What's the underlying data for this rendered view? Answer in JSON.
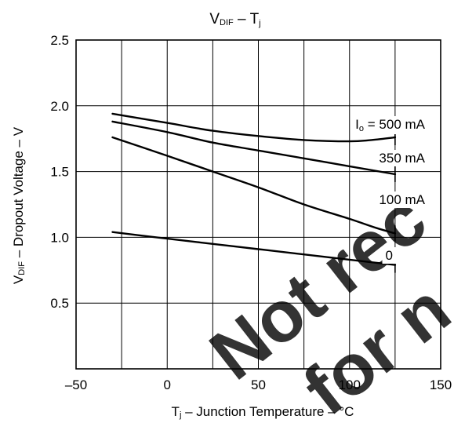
{
  "chart_data": {
    "type": "line",
    "title": {
      "main": "V",
      "sub": "DIF",
      "rest": " – T",
      "sub2": "j"
    },
    "xlabel": {
      "main": "T",
      "sub": "j",
      "rest": " – Junction Temperature – °C"
    },
    "ylabel": {
      "main": "V",
      "sub": "DIF",
      "rest": " – Dropout Voltage – V"
    },
    "xlim": [
      -50,
      150
    ],
    "ylim": [
      0,
      2.5
    ],
    "xticks": [
      -50,
      0,
      50,
      100,
      150
    ],
    "xtick_labels": [
      "–50",
      "0",
      "50",
      "100",
      "150"
    ],
    "yticks": [
      0.5,
      1.0,
      1.5,
      2.0,
      2.5
    ],
    "ytick_labels": [
      "0.5",
      "1.0",
      "1.5",
      "2.0",
      "2.5"
    ],
    "grid": true,
    "series": [
      {
        "name": "Io = 500 mA",
        "label": {
          "main": "I",
          "sub": "o",
          "rest": " = 500 mA"
        },
        "points": [
          [
            -30,
            1.94
          ],
          [
            0,
            1.87
          ],
          [
            25,
            1.81
          ],
          [
            50,
            1.77
          ],
          [
            75,
            1.74
          ],
          [
            100,
            1.73
          ],
          [
            112,
            1.74
          ],
          [
            125,
            1.76
          ]
        ]
      },
      {
        "name": "350 mA",
        "label": {
          "main": "350 mA"
        },
        "points": [
          [
            -30,
            1.88
          ],
          [
            0,
            1.8
          ],
          [
            25,
            1.72
          ],
          [
            50,
            1.66
          ],
          [
            75,
            1.6
          ],
          [
            100,
            1.54
          ],
          [
            125,
            1.48
          ]
        ]
      },
      {
        "name": "100 mA",
        "label": {
          "main": "100 mA"
        },
        "points": [
          [
            -30,
            1.76
          ],
          [
            0,
            1.62
          ],
          [
            25,
            1.5
          ],
          [
            50,
            1.38
          ],
          [
            75,
            1.25
          ],
          [
            100,
            1.14
          ],
          [
            115,
            1.07
          ],
          [
            125,
            1.03
          ]
        ]
      },
      {
        "name": "0",
        "label": {
          "main": "0"
        },
        "points": [
          [
            -30,
            1.04
          ],
          [
            0,
            0.99
          ],
          [
            25,
            0.95
          ],
          [
            50,
            0.91
          ],
          [
            75,
            0.87
          ],
          [
            100,
            0.83
          ],
          [
            125,
            0.79
          ]
        ]
      }
    ],
    "watermark": "Not recommended for new designs"
  }
}
